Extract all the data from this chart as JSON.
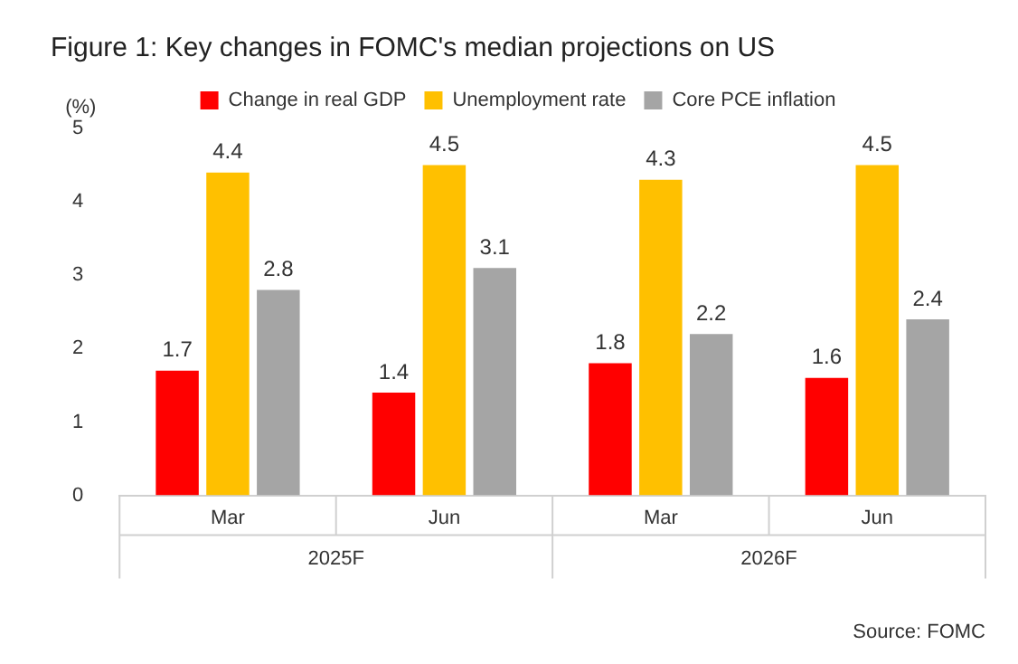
{
  "chart_data": {
    "type": "bar",
    "title": "Figure 1: Key changes in FOMC's median projections on US",
    "ylabel": "(%)",
    "categories": [
      "Mar",
      "Jun",
      "Mar",
      "Jun"
    ],
    "series": [
      {
        "name": "Change in real GDP",
        "color": "#ff0000",
        "values": [
          1.7,
          1.4,
          1.8,
          1.6
        ]
      },
      {
        "name": "Unemployment rate",
        "color": "#ffc000",
        "values": [
          4.4,
          4.5,
          4.3,
          4.5
        ]
      },
      {
        "name": "Core PCE inflation",
        "color": "#a5a5a5",
        "values": [
          2.8,
          3.1,
          2.2,
          2.4
        ]
      }
    ],
    "ylim": [
      0,
      5
    ],
    "yticks": [
      0,
      1,
      2,
      3,
      4,
      5
    ],
    "grid": false,
    "legend": "top",
    "data_labels": true,
    "annotations": [
      "2025F",
      "2026F",
      "Source: FOMC"
    ]
  }
}
